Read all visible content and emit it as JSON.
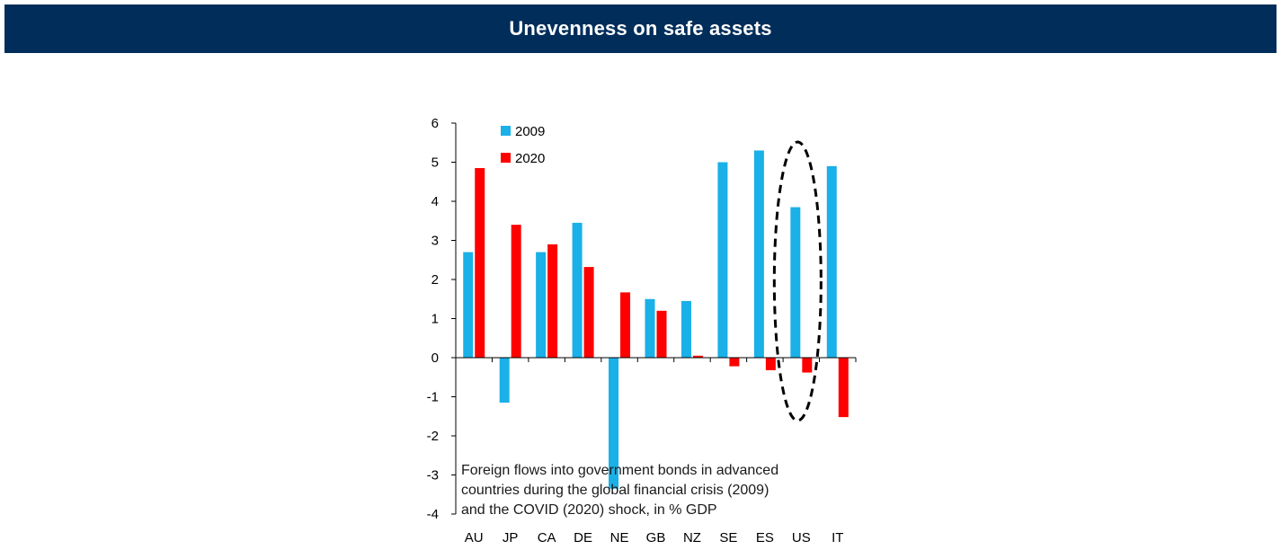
{
  "header": {
    "title": "Unevenness on safe assets"
  },
  "colors": {
    "header_bg": "#002D5A",
    "series_2009": "#1AB0E8",
    "series_2020": "#FF0000"
  },
  "chart_data": {
    "type": "bar",
    "title": "Unevenness on safe assets",
    "annotation": "Foreign flows into government bonds in advanced countries during the global financial crisis (2009) and the COVID (2020) shock, in % GDP",
    "annotation_lines": [
      "Foreign flows into government bonds in advanced",
      "countries during the global financial crisis (2009)",
      "and the COVID (2020)  shock, in % GDP"
    ],
    "categories": [
      "AU",
      "JP",
      "CA",
      "DE",
      "NE",
      "GB",
      "NZ",
      "SE",
      "ES",
      "US",
      "IT"
    ],
    "series": [
      {
        "name": "2009",
        "values": [
          2.7,
          -1.15,
          2.7,
          3.45,
          -3.35,
          1.5,
          1.45,
          5.0,
          5.3,
          3.85,
          4.9
        ]
      },
      {
        "name": "2020",
        "values": [
          4.85,
          3.4,
          2.9,
          2.32,
          1.67,
          1.2,
          0.05,
          -0.22,
          -0.32,
          -0.38,
          -1.52
        ]
      }
    ],
    "y_ticks": [
      "6",
      "5",
      "4",
      "3",
      "2",
      "1",
      "0",
      "-1",
      "-2",
      "-3",
      "-4"
    ],
    "ylim": [
      -4,
      6
    ],
    "xlabel": "",
    "ylabel": "",
    "legend": "top-left",
    "highlight": "US",
    "grid": false
  }
}
